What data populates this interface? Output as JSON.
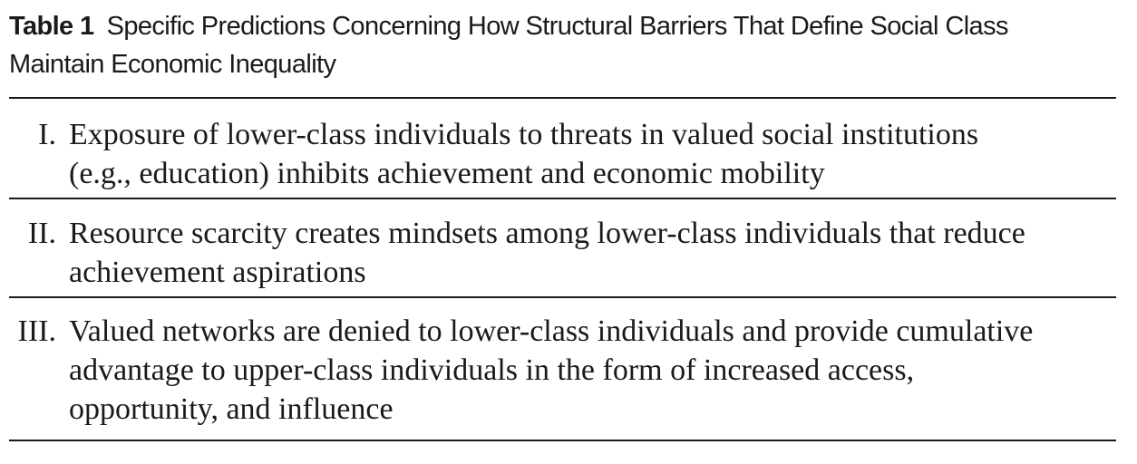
{
  "table": {
    "label": "Table 1",
    "title_line1": "Specific Predictions Concerning How Structural Barriers That Define Social Class",
    "title_line2": "Maintain Economic Inequality",
    "rows": [
      {
        "number": "I.",
        "text": "Exposure of lower-class individuals to threats in valued social institutions\n(e.g., education) inhibits achievement and economic mobility"
      },
      {
        "number": "II.",
        "text": "Resource scarcity creates mindsets among lower-class individuals that reduce\nachievement aspirations"
      },
      {
        "number": "III.",
        "text": "Valued networks are denied to lower-class individuals and provide cumulative\nadvantage to upper-class individuals in the form of increased access,\nopportunity, and influence"
      }
    ]
  }
}
